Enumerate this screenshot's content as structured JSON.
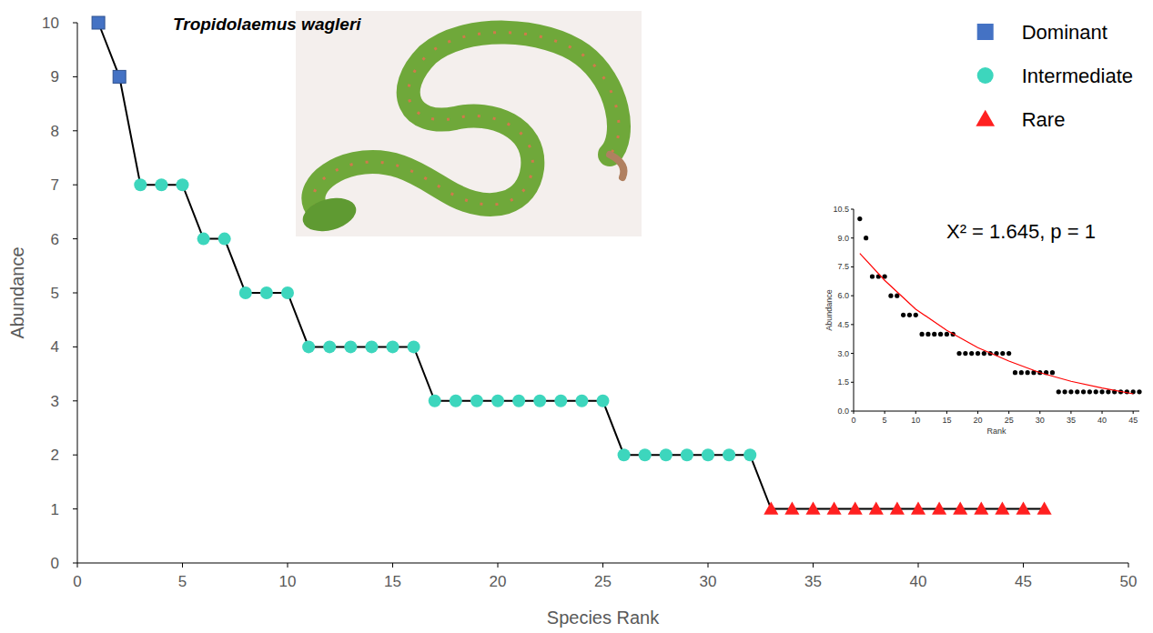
{
  "chart_data": [
    {
      "type": "line",
      "title": "Tropidolaemus wagleri",
      "x_label": "Species Rank",
      "y_label": "Abundance",
      "xlim": [
        0,
        50
      ],
      "ylim": [
        0,
        10
      ],
      "xticks": [
        0,
        5,
        10,
        15,
        20,
        25,
        30,
        35,
        40,
        45,
        50
      ],
      "yticks": [
        0,
        1,
        2,
        3,
        4,
        5,
        6,
        7,
        8,
        9,
        10
      ],
      "grid": false,
      "legend": "top-right",
      "series": [
        {
          "name": "Dominant",
          "color": "#4472c4",
          "marker": "square",
          "x": [
            1,
            2
          ],
          "values": [
            10,
            9
          ]
        },
        {
          "name": "Intermediate",
          "color": "#3dd6bd",
          "marker": "circle",
          "x": [
            3,
            4,
            5,
            6,
            7,
            8,
            9,
            10,
            11,
            12,
            13,
            14,
            15,
            16,
            17,
            18,
            19,
            20,
            21,
            22,
            23,
            24,
            25,
            26,
            27,
            28,
            29,
            30,
            31,
            32
          ],
          "values": [
            7,
            7,
            7,
            6,
            6,
            5,
            5,
            5,
            4,
            4,
            4,
            4,
            4,
            4,
            3,
            3,
            3,
            3,
            3,
            3,
            3,
            3,
            3,
            2,
            2,
            2,
            2,
            2,
            2,
            2
          ]
        },
        {
          "name": "Rare",
          "color": "#ff2020",
          "marker": "triangle",
          "x": [
            33,
            34,
            35,
            36,
            37,
            38,
            39,
            40,
            41,
            42,
            43,
            44,
            45,
            46
          ],
          "values": [
            1,
            1,
            1,
            1,
            1,
            1,
            1,
            1,
            1,
            1,
            1,
            1,
            1,
            1
          ]
        }
      ]
    },
    {
      "type": "scatter",
      "x_label": "Rank",
      "y_label": "Abundance",
      "annotations": [
        "X² = 1.645, p = 1"
      ],
      "xlim": [
        0,
        46
      ],
      "ylim": [
        0,
        10.5
      ],
      "xticks": [
        0,
        5,
        10,
        15,
        20,
        25,
        30,
        35,
        40,
        45
      ],
      "yticks": [
        {
          "value": 0,
          "label": "0.0"
        },
        1.5,
        {
          "value": 3,
          "label": "3.0"
        },
        4.5,
        {
          "value": 6,
          "label": "6.0"
        },
        7.5,
        {
          "value": 9,
          "label": "9.0"
        },
        10.5
      ],
      "grid": false,
      "series": [
        {
          "color": "#000000",
          "marker": "circle",
          "x": [
            1,
            2,
            3,
            4,
            5,
            6,
            7,
            8,
            9,
            10,
            11,
            12,
            13,
            14,
            15,
            16,
            17,
            18,
            19,
            20,
            21,
            22,
            23,
            24,
            25,
            26,
            27,
            28,
            29,
            30,
            31,
            32,
            33,
            34,
            35,
            36,
            37,
            38,
            39,
            40,
            41,
            42,
            43,
            44,
            45,
            46
          ],
          "values": [
            10,
            9,
            7,
            7,
            7,
            6,
            6,
            5,
            5,
            5,
            4,
            4,
            4,
            4,
            4,
            4,
            3,
            3,
            3,
            3,
            3,
            3,
            3,
            3,
            3,
            2,
            2,
            2,
            2,
            2,
            2,
            2,
            1,
            1,
            1,
            1,
            1,
            1,
            1,
            1,
            1,
            1,
            1,
            1,
            1,
            1
          ]
        },
        {
          "type": "line",
          "color": "#ff0000",
          "x": [
            1,
            5,
            10,
            15,
            20,
            25,
            30,
            35,
            40,
            45
          ],
          "values": [
            8.2,
            6.8,
            5.3,
            4.2,
            3.3,
            2.6,
            2.0,
            1.55,
            1.2,
            0.9
          ]
        }
      ]
    }
  ]
}
